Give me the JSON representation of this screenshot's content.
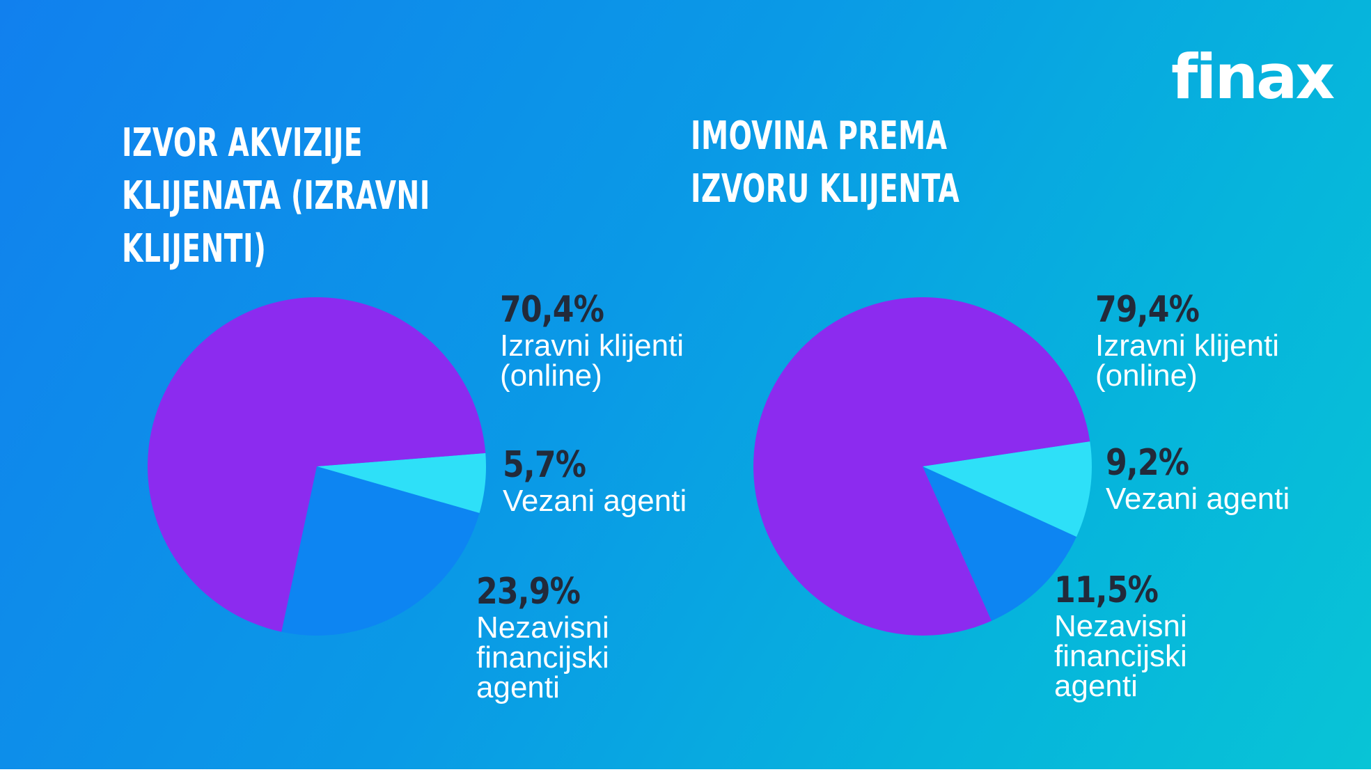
{
  "logo": "finax",
  "colors": {
    "izravni": "#8c2bef",
    "vezani": "#2ee0f8",
    "nezavisni": "#0d85f2"
  },
  "chart_data": [
    {
      "type": "pie",
      "title": "IZVOR AKVIZIJE KLIJENATA (IZRAVNI KLIJENTI)",
      "slices": [
        {
          "category": "Izravni klijenti\n(online)",
          "value": 70.4,
          "label": "70,4%",
          "color": "#8c2bef"
        },
        {
          "category": "Vezani agenti",
          "value": 5.7,
          "label": "5,7%",
          "color": "#2ee0f8"
        },
        {
          "category": "Nezavisni\nfinancijski\nagenti",
          "value": 23.9,
          "label": "23,9%",
          "color": "#0d85f2"
        }
      ]
    },
    {
      "type": "pie",
      "title": "IMOVINA PREMA IZVORU KLIJENTA",
      "slices": [
        {
          "category": "Izravni klijenti\n(online)",
          "value": 79.4,
          "label": "79,4%",
          "color": "#8c2bef"
        },
        {
          "category": "Vezani agenti",
          "value": 9.2,
          "label": "9,2%",
          "color": "#2ee0f8"
        },
        {
          "category": "Nezavisni\nfinancijski\nagenti",
          "value": 11.5,
          "label": "11,5%",
          "color": "#0d85f2"
        }
      ]
    }
  ]
}
